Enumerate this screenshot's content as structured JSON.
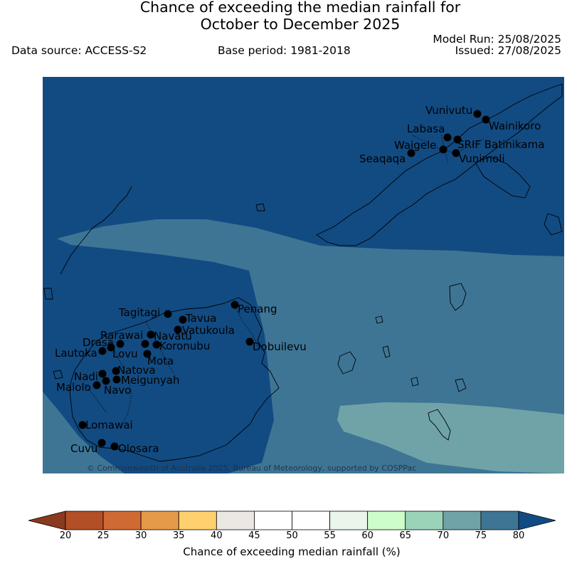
{
  "header": {
    "title_line1": "Chance of exceeding the median rainfall for",
    "title_line2": "October to December 2025",
    "data_source": "Data source: ACCESS-S2",
    "base_period": "Base period: 1981-2018",
    "model_run": "Model Run: 25/08/2025",
    "issued": "Issued: 27/08/2025"
  },
  "map": {
    "credit": "© Commonwealth of Australia 2025, Bureau of Meteorology, supported by COSPPac",
    "colors": {
      "band_70_75": "#6fa3a8",
      "band_75_80": "#3e7595",
      "band_80_plus": "#124b82",
      "marker": "#000000"
    },
    "zones": [
      {
        "id": "background",
        "category": "80+"
      },
      {
        "id": "central-band",
        "category": "75-80"
      },
      {
        "id": "southeast-patch",
        "category": "70-75"
      },
      {
        "id": "southwest-corner",
        "category": "75-80"
      }
    ],
    "stations": [
      {
        "id": "vunivutu",
        "name": "Vunivutu"
      },
      {
        "id": "wainikoro",
        "name": "Wainikoro"
      },
      {
        "id": "labasa",
        "name": "Labasa"
      },
      {
        "id": "waigele",
        "name": "Waigele"
      },
      {
        "id": "srif-batinikama",
        "name": "SRIF Batinikama"
      },
      {
        "id": "seaqaqa",
        "name": "Seaqaqa"
      },
      {
        "id": "vunimoli",
        "name": "Vunimoli"
      },
      {
        "id": "penang",
        "name": "Penang"
      },
      {
        "id": "dobuilevu",
        "name": "Dobuilevu"
      },
      {
        "id": "tagitagi",
        "name": "Tagitagi"
      },
      {
        "id": "tavua",
        "name": "Tavua"
      },
      {
        "id": "vatukoula",
        "name": "Vatukoula"
      },
      {
        "id": "rarawai",
        "name": "Rarawai"
      },
      {
        "id": "navatu",
        "name": "Navatu"
      },
      {
        "id": "drasa",
        "name": "Drasa"
      },
      {
        "id": "koronubu",
        "name": "Koronubu"
      },
      {
        "id": "lautoka",
        "name": "Lautoka"
      },
      {
        "id": "lovu",
        "name": "Lovu"
      },
      {
        "id": "mota",
        "name": "Mota"
      },
      {
        "id": "natova",
        "name": "Natova"
      },
      {
        "id": "nadi",
        "name": "Nadi"
      },
      {
        "id": "meigunyah",
        "name": "Meigunyah"
      },
      {
        "id": "malolo",
        "name": "Malolo"
      },
      {
        "id": "navo",
        "name": "Navo"
      },
      {
        "id": "lomawai",
        "name": "Lomawai"
      },
      {
        "id": "cuvu",
        "name": "Cuvu"
      },
      {
        "id": "olosara",
        "name": "Olosara"
      }
    ]
  },
  "colorbar": {
    "label": "Chance of exceeding median rainfall (%)",
    "ticks": [
      "20",
      "25",
      "30",
      "35",
      "40",
      "45",
      "50",
      "55",
      "60",
      "65",
      "70",
      "75",
      "80"
    ],
    "below_color": "#8a3a1e",
    "above_color": "#124b82",
    "segments": [
      {
        "range": "20-25",
        "color": "#b24f27"
      },
      {
        "range": "25-30",
        "color": "#d06a35"
      },
      {
        "range": "30-35",
        "color": "#e59a4a"
      },
      {
        "range": "35-40",
        "color": "#fed06e"
      },
      {
        "range": "40-45",
        "color": "#ebe7e3"
      },
      {
        "range": "45-50",
        "color": "#ffffff"
      },
      {
        "range": "50-55",
        "color": "#ffffff"
      },
      {
        "range": "55-60",
        "color": "#eaf5ec"
      },
      {
        "range": "60-65",
        "color": "#ccfdcb"
      },
      {
        "range": "65-70",
        "color": "#9bd3b9"
      },
      {
        "range": "70-75",
        "color": "#6fa3a8"
      },
      {
        "range": "75-80",
        "color": "#3e7595"
      }
    ]
  }
}
